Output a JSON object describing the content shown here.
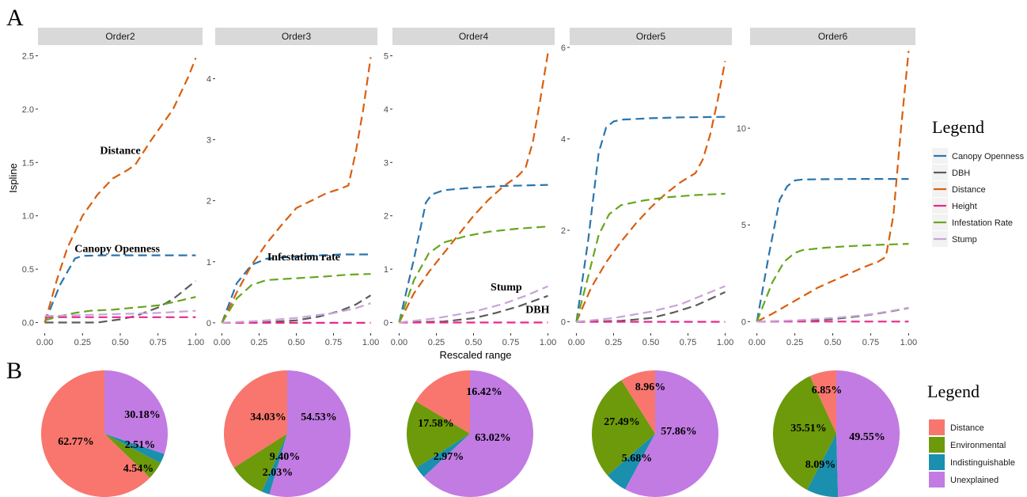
{
  "panel_letters": {
    "a": "A",
    "b": "B"
  },
  "line_legend_title": "Legend",
  "pie_legend_title": "Legend",
  "x_axis_title": "Rescaled range",
  "y_axis_title": "Ispline",
  "colors": {
    "Canopy Openness": "#2a75ad",
    "DBH": "#5c5c5c",
    "Distance": "#d95f0e",
    "Height": "#e7298a",
    "Infestation Rate": "#66a61e",
    "Stump": "#c9a3d8",
    "Environmental": "#6c9a0a",
    "Indistinguishable": "#1a8fae",
    "Unexplained": "#c27be3",
    "Distance_pie": "#f8766d"
  },
  "chart_data": [
    {
      "type": "line",
      "title": "Order2",
      "xlabel": "Rescaled range",
      "ylabel": "Ispline",
      "xlim": [
        0,
        1
      ],
      "ylim": [
        -0.1,
        2.6
      ],
      "xticks": [
        "0.00",
        "0.25",
        "0.50",
        "0.75",
        "1.00"
      ],
      "yticks": [
        "0.0",
        "0.5",
        "1.0",
        "1.5",
        "2.0",
        "2.5"
      ],
      "ytick_values": [
        0,
        0.5,
        1.0,
        1.5,
        2.0,
        2.5
      ],
      "annotations": [
        {
          "text": "Distance",
          "x": 0.5,
          "y": 1.58
        },
        {
          "text": "Canopy Openness",
          "x": 0.48,
          "y": 0.66
        }
      ],
      "series": [
        {
          "name": "Canopy Openness",
          "x": [
            0,
            0.1,
            0.2,
            0.25,
            0.4,
            0.6,
            0.8,
            1.0
          ],
          "y": [
            0,
            0.35,
            0.6,
            0.625,
            0.63,
            0.63,
            0.63,
            0.63
          ]
        },
        {
          "name": "DBH",
          "x": [
            0,
            0.35,
            0.5,
            0.6,
            0.75,
            0.85,
            1.0
          ],
          "y": [
            0,
            0,
            0.03,
            0.06,
            0.14,
            0.22,
            0.39
          ]
        },
        {
          "name": "Distance",
          "x": [
            0,
            0.08,
            0.15,
            0.25,
            0.35,
            0.45,
            0.55,
            0.6,
            0.7,
            0.85,
            0.95,
            1.0
          ],
          "y": [
            0,
            0.4,
            0.7,
            1.0,
            1.2,
            1.35,
            1.43,
            1.48,
            1.7,
            2.0,
            2.3,
            2.48
          ]
        },
        {
          "name": "Height",
          "x": [
            0,
            0.25,
            0.5,
            0.75,
            1.0
          ],
          "y": [
            0.05,
            0.05,
            0.05,
            0.05,
            0.05
          ]
        },
        {
          "name": "Infestation Rate",
          "x": [
            0,
            0.1,
            0.2,
            0.3,
            0.45,
            0.6,
            0.75,
            0.85,
            1.0
          ],
          "y": [
            0.02,
            0.06,
            0.09,
            0.11,
            0.12,
            0.14,
            0.16,
            0.19,
            0.24
          ]
        },
        {
          "name": "Stump",
          "x": [
            0,
            0.25,
            0.5,
            0.75,
            1.0
          ],
          "y": [
            0.06,
            0.07,
            0.08,
            0.09,
            0.11
          ]
        }
      ]
    },
    {
      "type": "line",
      "title": "Order3",
      "xlabel": "Rescaled range",
      "ylabel": "",
      "xlim": [
        0,
        1
      ],
      "ylim": [
        -0.17,
        4.55
      ],
      "xticks": [
        "0.00",
        "0.25",
        "0.50",
        "0.75",
        "1.00"
      ],
      "yticks": [
        "0",
        "1",
        "2",
        "3",
        "4"
      ],
      "ytick_values": [
        0,
        1,
        2,
        3,
        4
      ],
      "annotations": [
        {
          "text": "Infestation rate",
          "x": 0.55,
          "y": 1.02
        }
      ],
      "series": [
        {
          "name": "Canopy Openness",
          "x": [
            0,
            0.1,
            0.2,
            0.3,
            0.45,
            0.6,
            0.8,
            1.0
          ],
          "y": [
            0,
            0.65,
            0.95,
            1.05,
            1.08,
            1.1,
            1.12,
            1.12
          ]
        },
        {
          "name": "DBH",
          "x": [
            0,
            0.3,
            0.5,
            0.65,
            0.8,
            0.9,
            1.0
          ],
          "y": [
            0,
            0.01,
            0.04,
            0.1,
            0.2,
            0.3,
            0.45
          ]
        },
        {
          "name": "Distance",
          "x": [
            0,
            0.1,
            0.2,
            0.3,
            0.4,
            0.5,
            0.6,
            0.7,
            0.8,
            0.85,
            0.9,
            0.95,
            1.0
          ],
          "y": [
            0,
            0.5,
            0.95,
            1.3,
            1.6,
            1.88,
            2.0,
            2.12,
            2.2,
            2.25,
            2.8,
            3.5,
            4.35
          ]
        },
        {
          "name": "Height",
          "x": [
            0,
            0.25,
            0.5,
            0.75,
            1.0
          ],
          "y": [
            0,
            0,
            0,
            0,
            0
          ]
        },
        {
          "name": "Infestation Rate",
          "x": [
            0,
            0.1,
            0.2,
            0.3,
            0.5,
            0.7,
            0.85,
            1.0
          ],
          "y": [
            0,
            0.4,
            0.62,
            0.7,
            0.73,
            0.76,
            0.79,
            0.8
          ]
        },
        {
          "name": "Stump",
          "x": [
            0,
            0.25,
            0.5,
            0.75,
            0.9,
            1.0
          ],
          "y": [
            0,
            0.03,
            0.08,
            0.16,
            0.24,
            0.32
          ]
        }
      ]
    },
    {
      "type": "line",
      "title": "Order4",
      "xlabel": "Rescaled range",
      "ylabel": "",
      "xlim": [
        0,
        1
      ],
      "ylim": [
        -0.2,
        5.2
      ],
      "xticks": [
        "0.00",
        "0.25",
        "0.50",
        "0.75",
        "1.00"
      ],
      "yticks": [
        "0",
        "1",
        "2",
        "3",
        "4",
        "5"
      ],
      "ytick_values": [
        0,
        1,
        2,
        3,
        4,
        5
      ],
      "annotations": [
        {
          "text": "Stump",
          "x": 0.72,
          "y": 0.6
        },
        {
          "text": "DBH",
          "x": 0.93,
          "y": 0.18
        }
      ],
      "series": [
        {
          "name": "Canopy Openness",
          "x": [
            0,
            0.1,
            0.18,
            0.22,
            0.3,
            0.5,
            0.7,
            1.0
          ],
          "y": [
            0,
            1.2,
            2.25,
            2.4,
            2.48,
            2.53,
            2.56,
            2.58
          ]
        },
        {
          "name": "DBH",
          "x": [
            0,
            0.3,
            0.5,
            0.65,
            0.8,
            0.9,
            1.0
          ],
          "y": [
            0,
            0.02,
            0.08,
            0.18,
            0.3,
            0.4,
            0.5
          ]
        },
        {
          "name": "Distance",
          "x": [
            0,
            0.1,
            0.2,
            0.3,
            0.4,
            0.5,
            0.6,
            0.7,
            0.8,
            0.85,
            0.9,
            0.95,
            1.0
          ],
          "y": [
            0,
            0.55,
            0.95,
            1.3,
            1.65,
            2.0,
            2.3,
            2.55,
            2.75,
            2.9,
            3.4,
            4.2,
            5.05
          ]
        },
        {
          "name": "Height",
          "x": [
            0,
            0.25,
            0.5,
            0.75,
            1.0
          ],
          "y": [
            0,
            0,
            0,
            0,
            0
          ]
        },
        {
          "name": "Infestation Rate",
          "x": [
            0,
            0.1,
            0.2,
            0.3,
            0.45,
            0.6,
            0.8,
            1.0
          ],
          "y": [
            0,
            0.8,
            1.3,
            1.5,
            1.62,
            1.7,
            1.76,
            1.8
          ]
        },
        {
          "name": "Stump",
          "x": [
            0,
            0.25,
            0.5,
            0.7,
            0.85,
            1.0
          ],
          "y": [
            0,
            0.08,
            0.2,
            0.35,
            0.5,
            0.68
          ]
        }
      ]
    },
    {
      "type": "line",
      "title": "Order5",
      "xlabel": "Rescaled range",
      "ylabel": "",
      "xlim": [
        0,
        1
      ],
      "ylim": [
        -0.25,
        6.05
      ],
      "xticks": [
        "0.00",
        "0.25",
        "0.50",
        "0.75",
        "1.00"
      ],
      "yticks": [
        "0",
        "2",
        "4",
        "6"
      ],
      "ytick_values": [
        0,
        2,
        4,
        6
      ],
      "annotations": [],
      "series": [
        {
          "name": "Canopy Openness",
          "x": [
            0,
            0.08,
            0.15,
            0.2,
            0.25,
            0.3,
            0.5,
            0.7,
            1.0
          ],
          "y": [
            0,
            1.8,
            3.7,
            4.25,
            4.38,
            4.42,
            4.45,
            4.47,
            4.48
          ]
        },
        {
          "name": "DBH",
          "x": [
            0,
            0.3,
            0.5,
            0.65,
            0.8,
            0.9,
            1.0
          ],
          "y": [
            0,
            0.02,
            0.08,
            0.2,
            0.35,
            0.5,
            0.65
          ]
        },
        {
          "name": "Distance",
          "x": [
            0,
            0.1,
            0.2,
            0.3,
            0.4,
            0.5,
            0.6,
            0.7,
            0.8,
            0.85,
            0.9,
            0.95,
            1.0
          ],
          "y": [
            0,
            0.75,
            1.3,
            1.75,
            2.15,
            2.5,
            2.8,
            3.05,
            3.25,
            3.55,
            4.1,
            4.85,
            5.7
          ]
        },
        {
          "name": "Height",
          "x": [
            0,
            0.25,
            0.5,
            0.75,
            1.0
          ],
          "y": [
            0,
            0,
            0,
            0,
            0
          ]
        },
        {
          "name": "Infestation Rate",
          "x": [
            0,
            0.08,
            0.15,
            0.22,
            0.3,
            0.45,
            0.6,
            0.8,
            1.0
          ],
          "y": [
            0,
            1.0,
            1.9,
            2.35,
            2.55,
            2.65,
            2.72,
            2.77,
            2.8
          ]
        },
        {
          "name": "Stump",
          "x": [
            0,
            0.25,
            0.5,
            0.7,
            0.85,
            1.0
          ],
          "y": [
            0,
            0.08,
            0.22,
            0.38,
            0.58,
            0.78
          ]
        }
      ]
    },
    {
      "type": "line",
      "title": "Order6",
      "xlabel": "Rescaled range",
      "ylabel": "",
      "xlim": [
        0,
        1
      ],
      "ylim": [
        -0.6,
        14.3
      ],
      "xticks": [
        "0.00",
        "0.25",
        "0.50",
        "0.75",
        "1.00"
      ],
      "yticks": [
        "0",
        "5",
        "10"
      ],
      "ytick_values": [
        0,
        5,
        10
      ],
      "annotations": [],
      "series": [
        {
          "name": "Canopy Openness",
          "x": [
            0,
            0.08,
            0.15,
            0.2,
            0.25,
            0.3,
            0.5,
            0.7,
            1.0
          ],
          "y": [
            0,
            3.5,
            6.3,
            7.0,
            7.3,
            7.35,
            7.37,
            7.38,
            7.38
          ]
        },
        {
          "name": "DBH",
          "x": [
            0,
            0.3,
            0.5,
            0.7,
            0.85,
            1.0
          ],
          "y": [
            0,
            0.03,
            0.12,
            0.3,
            0.48,
            0.7
          ]
        },
        {
          "name": "Distance",
          "x": [
            0,
            0.1,
            0.2,
            0.3,
            0.4,
            0.5,
            0.6,
            0.7,
            0.8,
            0.85,
            0.9,
            0.95,
            1.0
          ],
          "y": [
            0,
            0.4,
            0.85,
            1.3,
            1.75,
            2.1,
            2.45,
            2.8,
            3.1,
            3.35,
            5.5,
            10.0,
            14.0
          ]
        },
        {
          "name": "Height",
          "x": [
            0,
            0.25,
            0.5,
            0.75,
            1.0
          ],
          "y": [
            0,
            0,
            0,
            0,
            0
          ]
        },
        {
          "name": "Infestation Rate",
          "x": [
            0,
            0.1,
            0.18,
            0.25,
            0.3,
            0.45,
            0.6,
            0.8,
            1.0
          ],
          "y": [
            0,
            2.0,
            3.1,
            3.55,
            3.7,
            3.82,
            3.9,
            3.97,
            4.02
          ]
        },
        {
          "name": "Stump",
          "x": [
            0,
            0.25,
            0.5,
            0.7,
            0.85,
            1.0
          ],
          "y": [
            0,
            0.06,
            0.18,
            0.32,
            0.5,
            0.72
          ]
        }
      ]
    },
    {
      "type": "pie",
      "categories": [
        "Distance",
        "Environmental",
        "Indistinguishable",
        "Unexplained"
      ],
      "values": [
        62.77,
        4.54,
        2.51,
        30.18
      ],
      "labels": [
        "62.77%",
        "4.54%",
        "2.51%",
        "30.18%"
      ]
    },
    {
      "type": "pie",
      "categories": [
        "Distance",
        "Environmental",
        "Indistinguishable",
        "Unexplained"
      ],
      "values": [
        34.03,
        9.4,
        2.03,
        54.53
      ],
      "labels": [
        "34.03%",
        "9.40%",
        "2.03%",
        "54.53%"
      ]
    },
    {
      "type": "pie",
      "categories": [
        "Distance",
        "Environmental",
        "Indistinguishable",
        "Unexplained"
      ],
      "values": [
        16.42,
        17.58,
        2.97,
        63.02
      ],
      "labels": [
        "16.42%",
        "17.58%",
        "2.97%",
        "63.02%"
      ]
    },
    {
      "type": "pie",
      "categories": [
        "Distance",
        "Environmental",
        "Indistinguishable",
        "Unexplained"
      ],
      "values": [
        8.96,
        27.49,
        5.68,
        57.86
      ],
      "labels": [
        "8.96%",
        "27.49%",
        "5.68%",
        "57.86%"
      ]
    },
    {
      "type": "pie",
      "categories": [
        "Distance",
        "Environmental",
        "Indistinguishable",
        "Unexplained"
      ],
      "values": [
        6.85,
        35.51,
        8.09,
        49.55
      ],
      "labels": [
        "6.85%",
        "35.51%",
        "8.09%",
        "49.55%"
      ]
    }
  ],
  "line_legend_items": [
    "Canopy Openness",
    "DBH",
    "Distance",
    "Height",
    "Infestation Rate",
    "Stump"
  ],
  "pie_legend_items": [
    "Distance",
    "Environmental",
    "Indistinguishable",
    "Unexplained"
  ]
}
